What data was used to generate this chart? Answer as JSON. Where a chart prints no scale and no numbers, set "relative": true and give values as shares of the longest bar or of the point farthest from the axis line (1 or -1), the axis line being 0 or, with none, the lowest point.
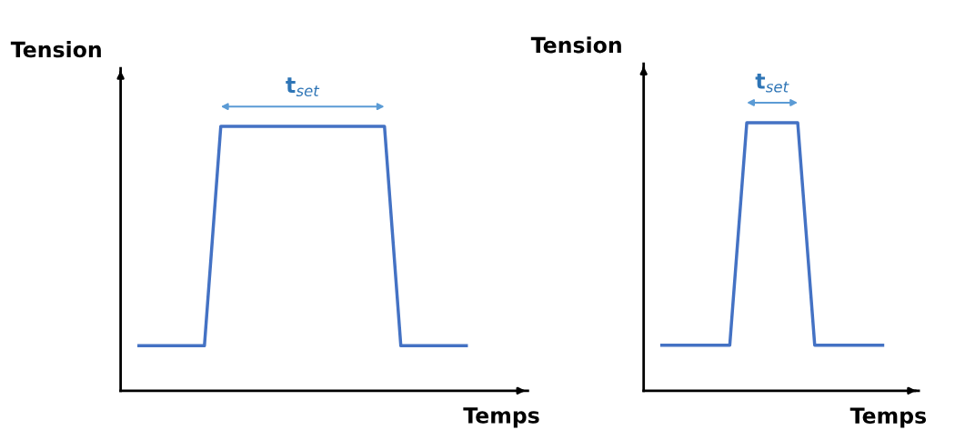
{
  "chart_data": [
    {
      "type": "line",
      "relative": true,
      "xlabel": "Temps",
      "ylabel": "Tension",
      "annotations": [
        "t$_{set}$"
      ],
      "marker": "none",
      "line_style": "solid",
      "categories": [
        null,
        null,
        null,
        null,
        null,
        null,
        null,
        null,
        null,
        null,
        null,
        null,
        null,
        null,
        null,
        null,
        null,
        null,
        null,
        null,
        null
      ],
      "series": [
        {
          "color": "#4472c4",
          "values": [
            0.17,
            0.17,
            0.17,
            0.17,
            0.17,
            1,
            1,
            1,
            1,
            1,
            1,
            1,
            1,
            1,
            1,
            1,
            0.17,
            0.17,
            0.17,
            0.17,
            0.17
          ]
        }
      ]
    },
    {
      "type": "line",
      "relative": true,
      "xlabel": "Temps",
      "ylabel": "Tension",
      "annotations": [
        "t$_{set}$"
      ],
      "marker": "none",
      "line_style": "solid",
      "categories": [
        null,
        null,
        null,
        null,
        null,
        null,
        null,
        null,
        null,
        null,
        null,
        null,
        null,
        null
      ],
      "series": [
        {
          "color": "#4472c4",
          "values": [
            0.17,
            0.17,
            0.17,
            0.17,
            0.17,
            1,
            1,
            1,
            1,
            0.17,
            0.17,
            0.17,
            0.17,
            0.17
          ]
        }
      ]
    }
  ]
}
